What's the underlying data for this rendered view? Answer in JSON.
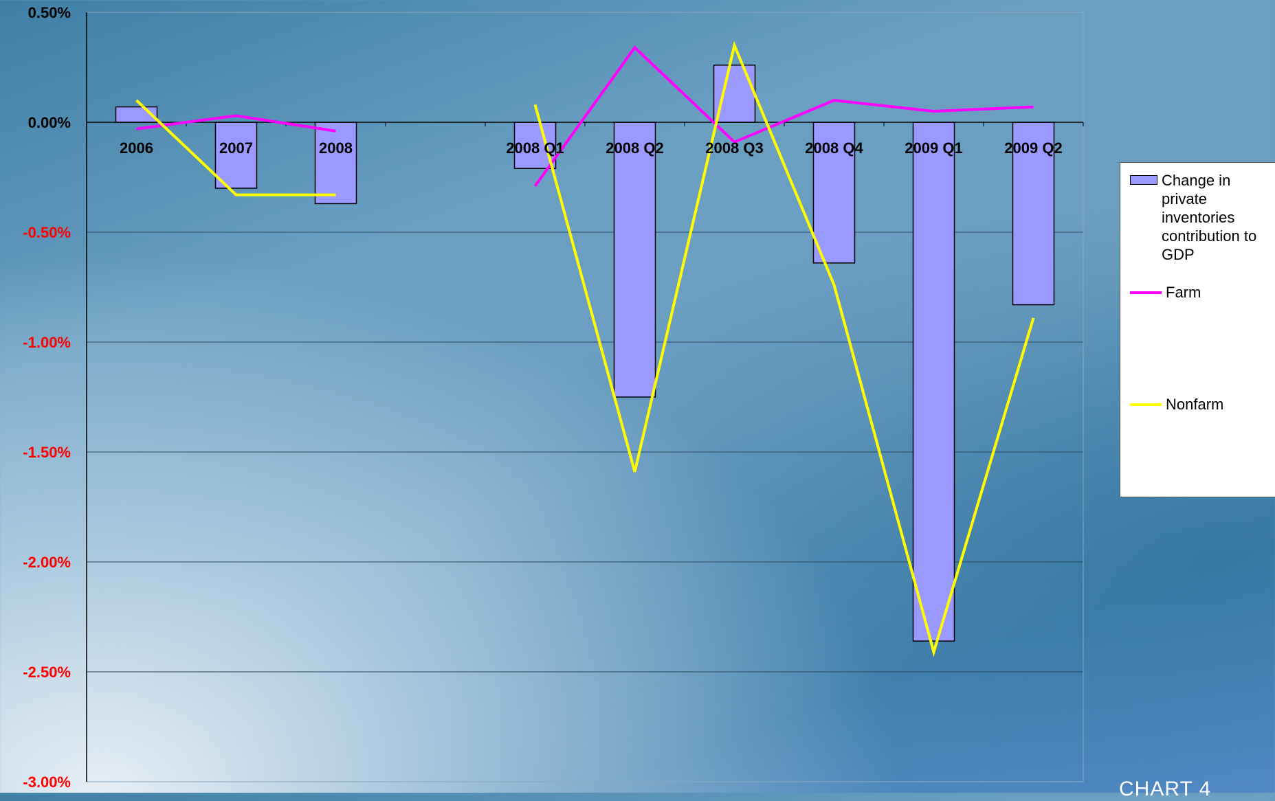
{
  "chart_data": {
    "type": "bar",
    "categories": [
      "2006",
      "2007",
      "2008",
      "",
      "2008 Q1",
      "2008 Q2",
      "2008 Q3",
      "2008 Q4",
      "2009 Q1",
      "2009 Q2"
    ],
    "series": [
      {
        "name": "Change in private inventories contribution to GDP",
        "type": "bar",
        "color": "#9999ff",
        "values": [
          0.07,
          -0.3,
          -0.37,
          null,
          -0.21,
          -1.25,
          0.26,
          -0.64,
          -2.36,
          -0.83
        ]
      },
      {
        "name": "Farm",
        "type": "line",
        "color": "#ff00ff",
        "values": [
          -0.03,
          0.03,
          -0.04,
          null,
          -0.29,
          0.34,
          -0.09,
          0.1,
          0.05,
          0.07
        ]
      },
      {
        "name": "Nonfarm",
        "type": "line",
        "color": "#ffff00",
        "values": [
          0.1,
          -0.33,
          -0.33,
          null,
          0.08,
          -1.59,
          0.35,
          -0.74,
          -2.41,
          -0.89
        ]
      }
    ],
    "y_ticks": [
      "0.50%",
      "0.00%",
      "-0.50%",
      "-1.00%",
      "-1.50%",
      "-2.00%",
      "-2.50%",
      "-3.00%"
    ],
    "ylim": [
      -3.0,
      0.5
    ],
    "tick_colors": {
      "positive": "#000000",
      "negative": "#ff0000"
    },
    "legend_position": "right",
    "grid": true
  },
  "legend": {
    "items": [
      {
        "label": "Change in private inventories contribution to GDP"
      },
      {
        "label": "Farm"
      },
      {
        "label": "Nonfarm"
      }
    ]
  },
  "footer": {
    "label": "CHART 4"
  }
}
